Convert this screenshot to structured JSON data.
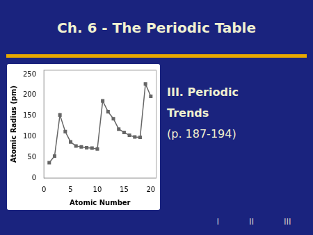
{
  "chart_data": {
    "type": "line",
    "title": "Ch. 6 - The Periodic Table",
    "subtitle": [
      "III. Periodic",
      "Trends",
      "(p. 187-194)"
    ],
    "annotations": [
      "I",
      "II",
      "III"
    ],
    "x": [
      1,
      2,
      3,
      4,
      5,
      6,
      7,
      8,
      9,
      10,
      11,
      12,
      13,
      14,
      15,
      16,
      17,
      18,
      19,
      20
    ],
    "values": [
      37,
      53,
      152,
      112,
      87,
      77,
      75,
      73,
      72,
      70,
      186,
      160,
      143,
      118,
      110,
      103,
      99,
      98,
      227,
      197
    ],
    "x_label": "Atomic Number",
    "y_label": "Atomic Radius (pm)",
    "xlim": [
      0,
      21
    ],
    "ylim": [
      0,
      260
    ],
    "xticks": [
      0,
      5,
      10,
      15,
      20
    ],
    "yticks": [
      0,
      50,
      100,
      150,
      200,
      250
    ],
    "color": "#666666",
    "marker": "square",
    "grid": false
  }
}
